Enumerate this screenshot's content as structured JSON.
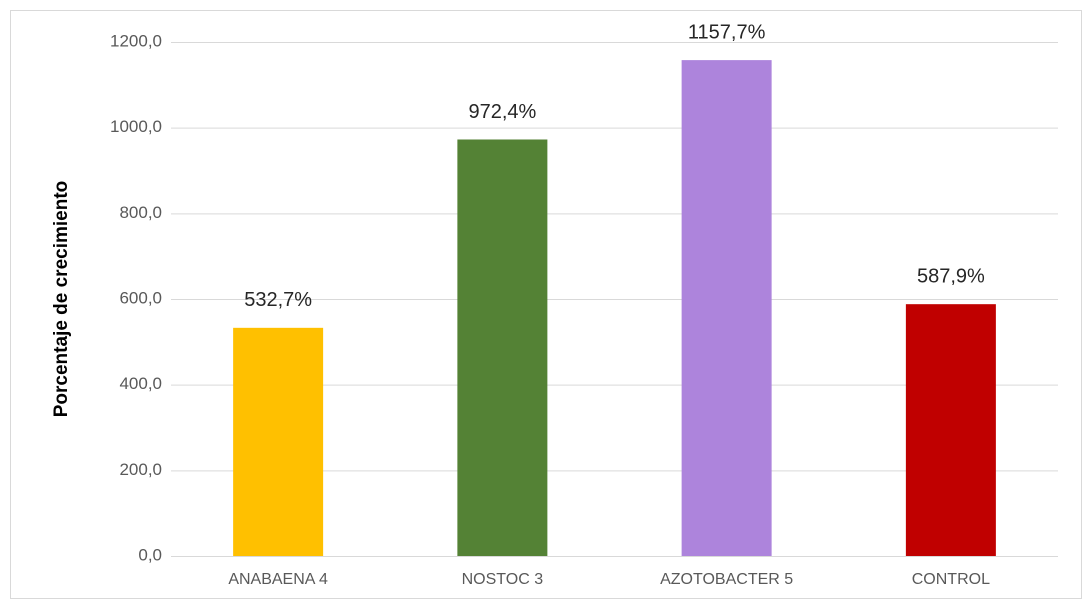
{
  "chart_data": {
    "type": "bar",
    "y_label": "Porcentaje de crecimiento",
    "categories": [
      "ANABAENA 4",
      "NOSTOC 3",
      "AZOTOBACTER 5",
      "CONTROL"
    ],
    "values": [
      532.7,
      972.4,
      1157.7,
      587.9
    ],
    "value_labels": [
      "532,7%",
      "972,4%",
      "1157,7%",
      "587,9%"
    ],
    "colors": [
      "#ffc000",
      "#548235",
      "#ad84dc",
      "#c00000"
    ],
    "ylim": [
      0,
      1200
    ],
    "yticks": [
      {
        "value": 0,
        "label": "0,0"
      },
      {
        "value": 200,
        "label": "200,0"
      },
      {
        "value": 400,
        "label": "400,0"
      },
      {
        "value": 600,
        "label": "600,0"
      },
      {
        "value": 800,
        "label": "800,0"
      },
      {
        "value": 1000,
        "label": "1000,0"
      },
      {
        "value": 1200,
        "label": "1200,0"
      }
    ],
    "grid": true
  }
}
